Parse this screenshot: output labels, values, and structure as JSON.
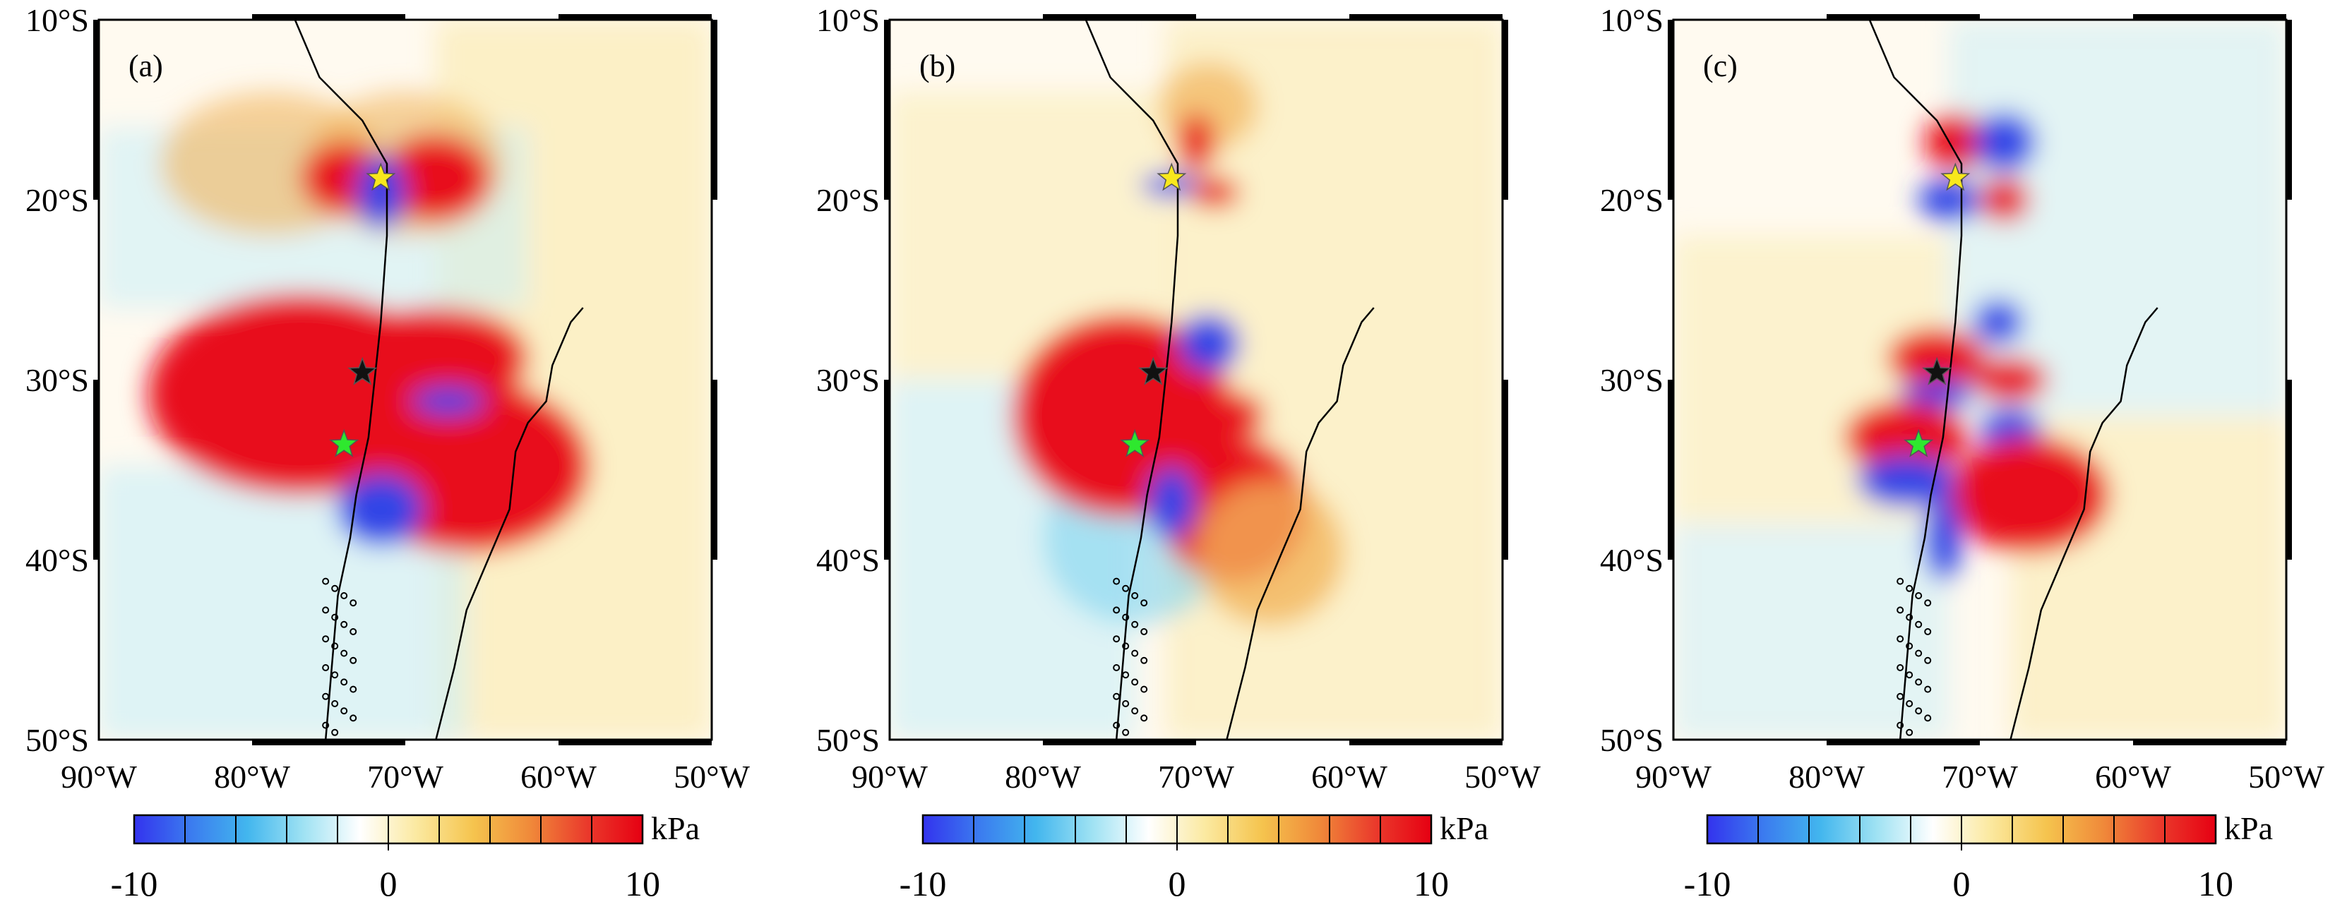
{
  "panels": [
    {
      "label": "(a)"
    },
    {
      "label": "(b)"
    },
    {
      "label": "(c)"
    }
  ],
  "lat_labels": [
    "10°S",
    "20°S",
    "30°S",
    "40°S",
    "50°S"
  ],
  "lon_labels": [
    "90°W",
    "80°W",
    "70°W",
    "60°W",
    "50°W"
  ],
  "colorbar": {
    "unit": "kPa",
    "min_label": "-10",
    "mid_label": "0",
    "max_label": "10",
    "stops": [
      "#3333ee",
      "#3b7bef",
      "#42b6ee",
      "#9fe2f3",
      "#ffffff",
      "#fbe9a0",
      "#f5c44e",
      "#f08a3a",
      "#ea3b2c",
      "#e60012"
    ]
  },
  "stars": [
    {
      "color": "#f8e81c",
      "name": "yellow-star"
    },
    {
      "color": "#111111",
      "name": "black-star"
    },
    {
      "color": "#2ee82e",
      "name": "green-star"
    }
  ],
  "map_extent": {
    "lon_min": -90,
    "lon_max": -50,
    "lat_min": -50,
    "lat_max": -10
  }
}
